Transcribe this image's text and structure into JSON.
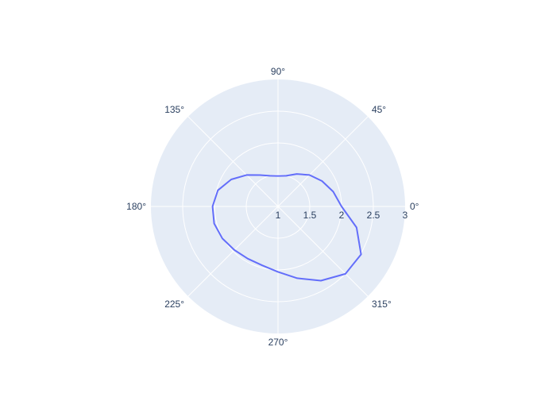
{
  "chart_data": {
    "type": "line",
    "subtype": "polar",
    "title": "",
    "angular_axis": {
      "unit": "degrees",
      "direction": "counterclockwise",
      "rotation": 0,
      "tick_labels": [
        "0°",
        "45°",
        "90°",
        "135°",
        "180°",
        "225°",
        "270°",
        "315°"
      ],
      "tick_values": [
        0,
        45,
        90,
        135,
        180,
        225,
        270,
        315
      ]
    },
    "radial_axis": {
      "range": [
        1,
        3
      ],
      "tick_values": [
        1,
        1.5,
        2,
        2.5,
        3
      ],
      "tick_labels": [
        "1",
        "1.5",
        "2",
        "2.5",
        "3"
      ]
    },
    "grid": true,
    "colors": {
      "background": "#e5ecf6",
      "grid": "#ffffff",
      "line": "#636efa",
      "text": "#2a3f5f"
    },
    "series": [
      {
        "theta": [
          0,
          15,
          30,
          45,
          60,
          75,
          90,
          105,
          120,
          135,
          150,
          165,
          180,
          195,
          210,
          225,
          240,
          255,
          270,
          285,
          300,
          315,
          330,
          345,
          360
        ],
        "r": [
          2.0,
          1.9,
          1.8,
          1.7,
          1.59,
          1.5,
          1.48,
          1.5,
          1.57,
          1.7,
          1.85,
          1.98,
          2.03,
          2.04,
          2.01,
          1.97,
          1.95,
          1.96,
          2.03,
          2.17,
          2.35,
          2.5,
          2.51,
          2.28,
          2.0
        ]
      }
    ]
  }
}
